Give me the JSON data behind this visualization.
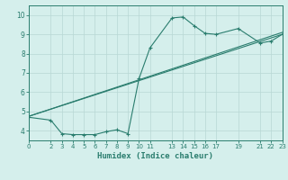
{
  "xlabel": "Humidex (Indice chaleur)",
  "background_color": "#d5efec",
  "grid_color": "#b8d8d4",
  "line_color": "#2a7d6e",
  "xlim": [
    0,
    23
  ],
  "ylim": [
    3.5,
    10.5
  ],
  "x_ticks": [
    0,
    2,
    3,
    4,
    5,
    6,
    7,
    8,
    9,
    10,
    11,
    13,
    14,
    15,
    16,
    17,
    19,
    21,
    22,
    23
  ],
  "y_ticks": [
    4,
    5,
    6,
    7,
    8,
    9,
    10
  ],
  "line1_x": [
    0,
    2,
    3,
    4,
    5,
    6,
    7,
    8,
    9,
    10,
    11,
    13,
    14,
    15,
    16,
    17,
    19,
    21,
    22,
    23
  ],
  "line1_y": [
    4.7,
    4.55,
    3.85,
    3.8,
    3.8,
    3.8,
    3.95,
    4.05,
    3.85,
    6.7,
    8.3,
    9.85,
    9.9,
    9.45,
    9.05,
    9.0,
    9.3,
    8.55,
    8.65,
    9.0
  ],
  "line2_x": [
    0,
    23
  ],
  "line2_y": [
    4.75,
    9.1
  ],
  "line3_x": [
    0,
    23
  ],
  "line3_y": [
    4.75,
    9.0
  ]
}
